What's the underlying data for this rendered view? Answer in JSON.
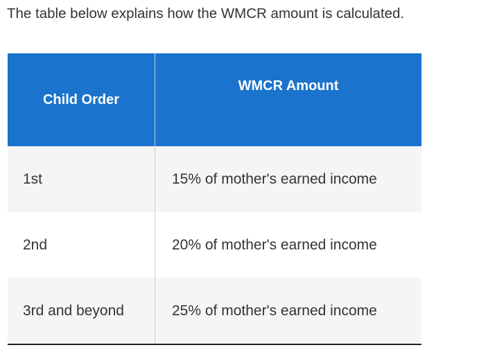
{
  "intro": "The table below explains how the WMCR amount is calculated.",
  "table": {
    "headers": [
      "Child Order",
      "WMCR Amount"
    ],
    "rows": [
      [
        "1st",
        "15% of mother's earned income"
      ],
      [
        "2nd",
        "20% of mother's earned income"
      ],
      [
        "3rd and beyond",
        "25% of mother's earned income"
      ]
    ]
  },
  "colors": {
    "header_bg": "#1a73cc",
    "stripe": "#f5f5f5"
  }
}
